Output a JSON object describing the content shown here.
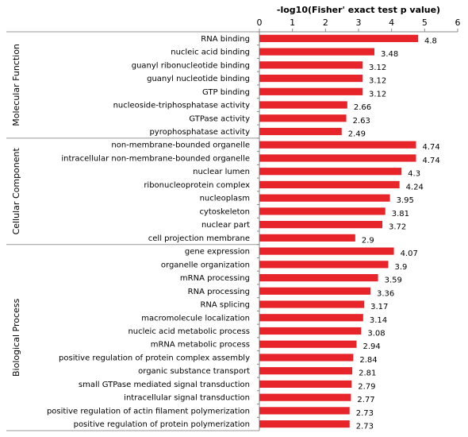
{
  "chart_data": {
    "type": "bar",
    "orientation": "horizontal",
    "title": "-log10(Fisher' exact test p value)",
    "xlim": [
      0,
      6
    ],
    "xticks": [
      "0",
      "1",
      "2",
      "3",
      "4",
      "5",
      "6"
    ],
    "bar_color": "#e8242b",
    "grid": false,
    "groups": [
      {
        "name": "Molecular Function",
        "categories": [
          "RNA binding",
          "nucleic acid binding",
          "guanyl ribonucleotide binding",
          "guanyl nucleotide binding",
          "GTP binding",
          "nucleoside-triphosphatase activity",
          "GTPase activity",
          "pyrophosphatase activity"
        ],
        "values": [
          4.8,
          3.48,
          3.12,
          3.12,
          3.12,
          2.66,
          2.63,
          2.49
        ]
      },
      {
        "name": "Cellular Component",
        "categories": [
          "non-membrane-bounded organelle",
          "intracellular non-membrane-bounded organelle",
          "nuclear lumen",
          "ribonucleoprotein complex",
          "nucleoplasm",
          "cytoskeleton",
          "nuclear part",
          "cell projection membrane"
        ],
        "values": [
          4.74,
          4.74,
          4.3,
          4.24,
          3.95,
          3.81,
          3.72,
          2.9
        ]
      },
      {
        "name": "Biological Process",
        "categories": [
          "gene expression",
          "organelle organization",
          "mRNA processing",
          "RNA processing",
          "RNA splicing",
          "macromolecule localization",
          "nucleic acid metabolic process",
          "mRNA metabolic process",
          "positive regulation of protein complex assembly",
          "organic substance transport",
          "small GTPase mediated signal transduction",
          "intracellular signal transduction",
          "positive regulation of actin filament polymerization",
          "positive regulation of protein polymerization"
        ],
        "values": [
          4.07,
          3.9,
          3.59,
          3.36,
          3.17,
          3.14,
          3.08,
          2.94,
          2.84,
          2.81,
          2.79,
          2.77,
          2.73,
          2.73
        ]
      }
    ]
  }
}
